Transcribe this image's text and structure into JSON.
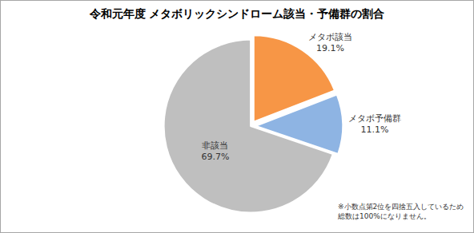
{
  "chart_data": {
    "type": "pie",
    "title": "令和元年度 メタボリックシンドローム該当・予備群の割合",
    "categories": [
      "メタボ該当",
      "メタボ予備群",
      "非該当"
    ],
    "values": [
      19.1,
      11.1,
      69.7
    ],
    "value_labels": [
      "19.1%",
      "11.1%",
      "69.7%"
    ],
    "colors": [
      "#f79646",
      "#8eb4e3",
      "#bfbfbf"
    ],
    "data_labels": true,
    "legend": false,
    "note": [
      "※小数点第2位を四捨五入しているため",
      "総数は100%になりません。"
    ]
  }
}
